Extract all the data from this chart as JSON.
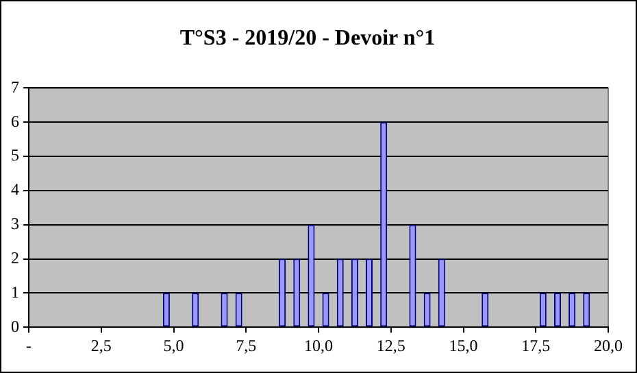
{
  "chart_data": {
    "type": "bar",
    "title": "T°S3 - 2019/20 - Devoir n°1",
    "x": [
      4.75,
      5.75,
      6.75,
      7.25,
      8.75,
      9.25,
      9.75,
      10.25,
      10.75,
      11.25,
      11.75,
      12.25,
      13.25,
      13.75,
      14.25,
      15.75,
      17.75,
      18.25,
      18.75,
      19.25
    ],
    "values": [
      1,
      1,
      1,
      1,
      2,
      2,
      3,
      1,
      2,
      2,
      2,
      6,
      3,
      1,
      2,
      1,
      1,
      1,
      1,
      1
    ],
    "color": "#9999ff",
    "xlim": [
      0,
      20
    ],
    "xticks": [
      {
        "value": 0,
        "label": "-"
      },
      {
        "value": 2.5,
        "label": "2,5"
      },
      {
        "value": 5,
        "label": "5,0"
      },
      {
        "value": 7.5,
        "label": "7,5"
      },
      {
        "value": 10,
        "label": "10,0"
      },
      {
        "value": 12.5,
        "label": "12,5"
      },
      {
        "value": 15,
        "label": "15,0"
      },
      {
        "value": 17.5,
        "label": "17,5"
      },
      {
        "value": 20,
        "label": "20,0"
      }
    ],
    "ylim": [
      0,
      7
    ],
    "yticks": [
      0,
      1,
      2,
      3,
      4,
      5,
      6,
      7
    ],
    "grid": "y",
    "legend": false
  }
}
